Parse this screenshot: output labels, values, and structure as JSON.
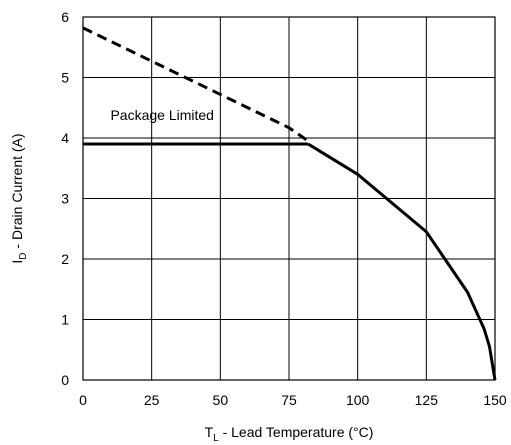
{
  "chart_data": {
    "type": "line",
    "xlabel": {
      "main": "T",
      "sub": "L",
      "rest": " - Lead Temperature (°C)"
    },
    "ylabel": {
      "main": "I",
      "sub": "D",
      "rest": " - Drain Current (A)"
    },
    "xlim": [
      0,
      150
    ],
    "ylim": [
      0,
      6
    ],
    "x_ticks": [
      "0",
      "25",
      "50",
      "75",
      "100",
      "125",
      "150"
    ],
    "y_ticks": [
      "0",
      "1",
      "2",
      "3",
      "4",
      "5",
      "6"
    ],
    "grid": true,
    "annotations": [
      {
        "text": "Package Limited",
        "x": 10,
        "y": 4.3
      }
    ],
    "series": [
      {
        "style": "dashed",
        "x": [
          0,
          25,
          50,
          75,
          82
        ],
        "y": [
          5.82,
          5.27,
          4.72,
          4.17,
          3.95
        ]
      },
      {
        "style": "solid",
        "x": [
          0,
          82
        ],
        "y": [
          3.9,
          3.9
        ]
      },
      {
        "style": "solid",
        "x": [
          82,
          100,
          125,
          140,
          146,
          148,
          150
        ],
        "y": [
          3.9,
          3.4,
          2.45,
          1.45,
          0.85,
          0.55,
          0
        ]
      }
    ]
  }
}
